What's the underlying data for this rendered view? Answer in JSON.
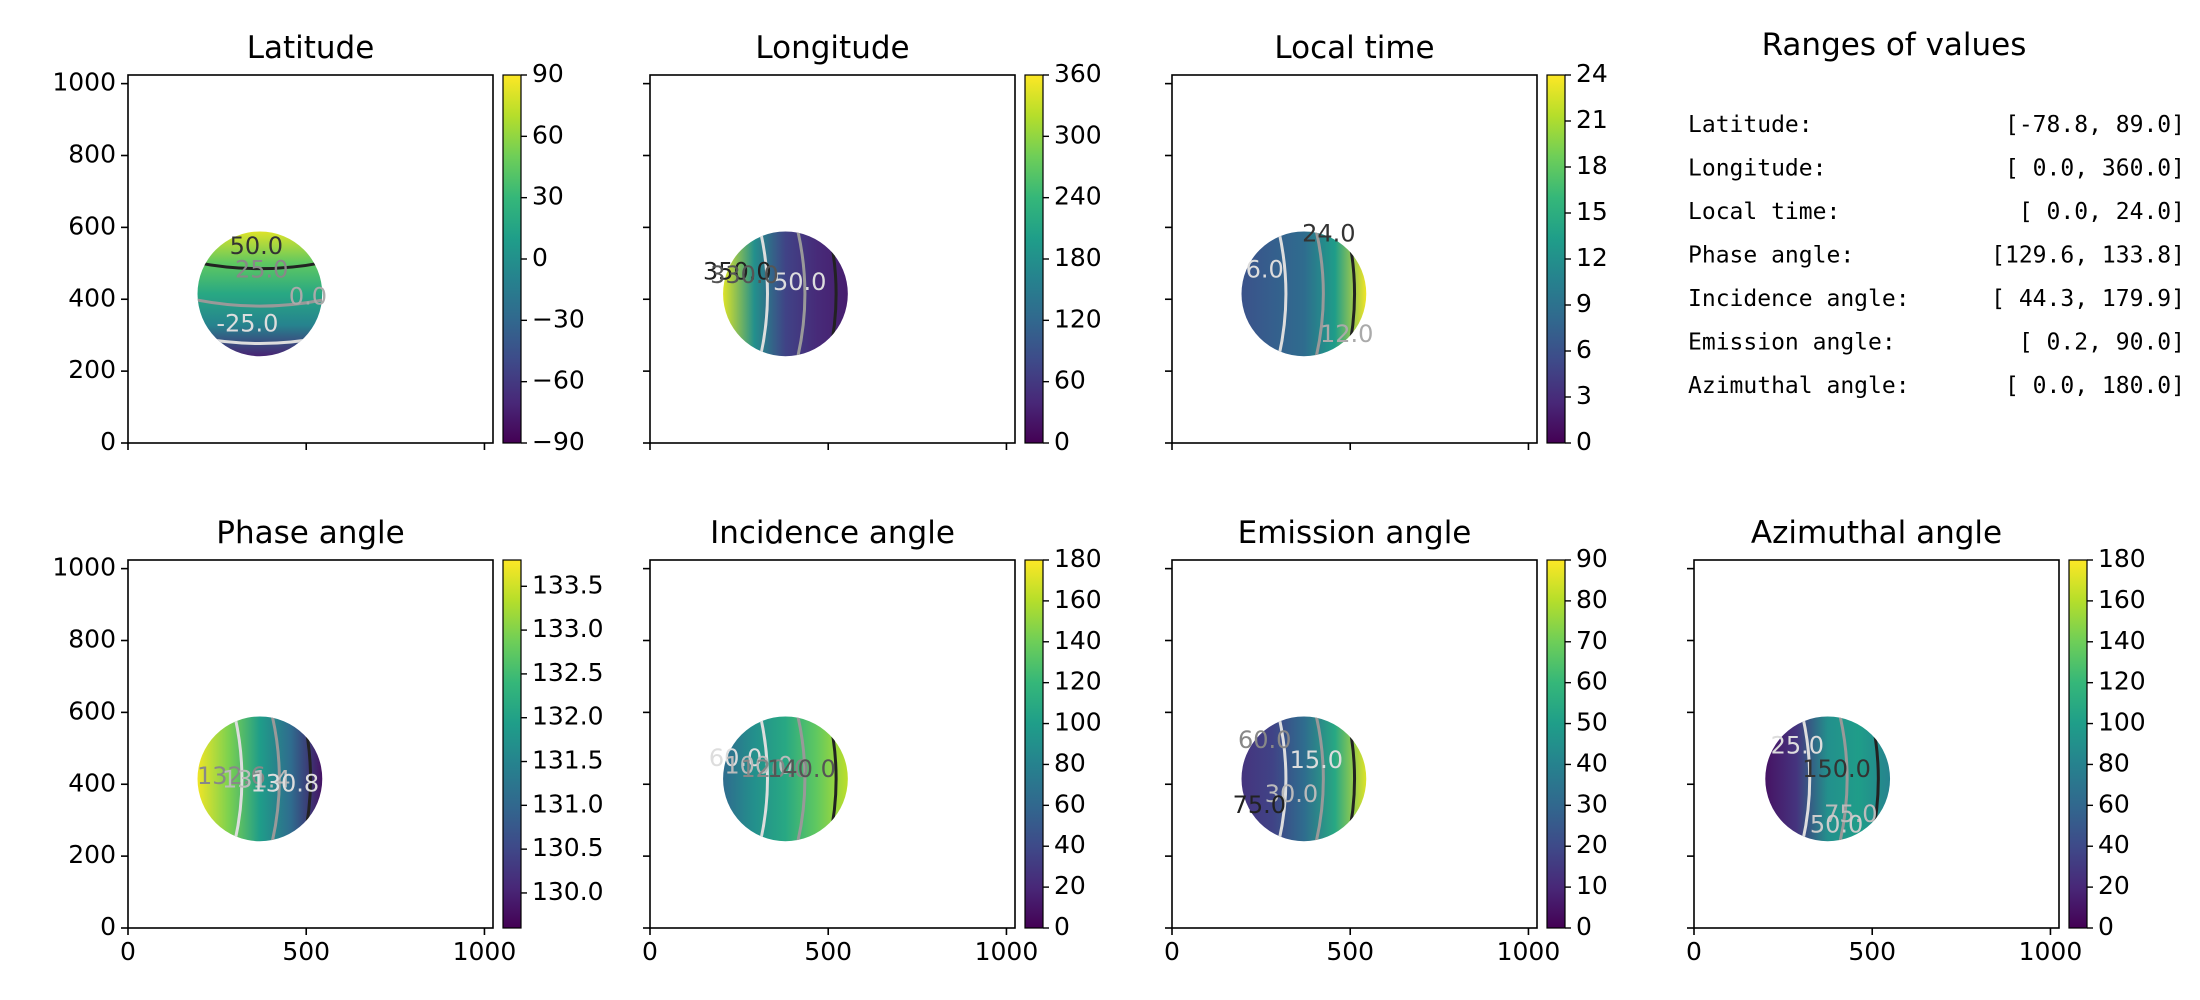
{
  "chart_data": [
    {
      "type": "heatmap",
      "title": "Latitude",
      "xticks": [],
      "yticks": [
        "0",
        "200",
        "400",
        "600",
        "800",
        "1000"
      ],
      "xlim": [
        0,
        1024
      ],
      "ylim": [
        0,
        1024
      ],
      "colorbar": {
        "min": -90,
        "max": 90,
        "ticks": [
          "90",
          "60",
          "30",
          "0",
          "−30",
          "−60",
          "−90"
        ],
        "tick_values": [
          90,
          60,
          30,
          0,
          -30,
          -60,
          -90
        ]
      },
      "disk": {
        "center": [
          370,
          415
        ],
        "radius": 175
      },
      "contour_labels": [
        {
          "text": "50.0",
          "x": 360,
          "y": 545,
          "color": "#333333"
        },
        {
          "text": "25.0",
          "x": 375,
          "y": 480,
          "color": "#888888"
        },
        {
          "text": "0.0",
          "x": 505,
          "y": 405,
          "color": "#aaaaaa"
        },
        {
          "text": "-25.0",
          "x": 335,
          "y": 330,
          "color": "#dddddd"
        }
      ]
    },
    {
      "type": "heatmap",
      "title": "Longitude",
      "xticks": [],
      "yticks": [],
      "xlim": [
        0,
        1024
      ],
      "ylim": [
        0,
        1024
      ],
      "colorbar": {
        "min": 0,
        "max": 360,
        "ticks": [
          "360",
          "300",
          "240",
          "180",
          "120",
          "60",
          "0"
        ],
        "tick_values": [
          360,
          300,
          240,
          180,
          120,
          60,
          0
        ]
      },
      "disk": {
        "center": [
          380,
          415
        ],
        "radius": 175
      },
      "contour_labels": [
        {
          "text": "50.0",
          "x": 420,
          "y": 445,
          "color": "#dddddd"
        },
        {
          "text": "350.0",
          "x": 245,
          "y": 475,
          "color": "#222222"
        },
        {
          "text": "330.0",
          "x": 265,
          "y": 465,
          "color": "#555555"
        }
      ]
    },
    {
      "type": "heatmap",
      "title": "Local time",
      "xticks": [],
      "yticks": [],
      "xlim": [
        0,
        1024
      ],
      "ylim": [
        0,
        1024
      ],
      "colorbar": {
        "min": 0,
        "max": 24,
        "ticks": [
          "24",
          "21",
          "18",
          "15",
          "12",
          "9",
          "6",
          "3",
          "0"
        ],
        "tick_values": [
          24,
          21,
          18,
          15,
          12,
          9,
          6,
          3,
          0
        ]
      },
      "disk": {
        "center": [
          370,
          415
        ],
        "radius": 175
      },
      "contour_labels": [
        {
          "text": "6.0",
          "x": 260,
          "y": 480,
          "color": "#dddddd"
        },
        {
          "text": "24.0",
          "x": 440,
          "y": 580,
          "color": "#333333"
        },
        {
          "text": "12.0",
          "x": 490,
          "y": 300,
          "color": "#aaaaaa"
        }
      ]
    },
    {
      "type": "text",
      "title": "Ranges of values",
      "rows": [
        {
          "label": "Latitude:",
          "range": "[-78.8,  89.0]"
        },
        {
          "label": "Longitude:",
          "range": "[  0.0, 360.0]"
        },
        {
          "label": "Local time:",
          "range": "[  0.0,  24.0]"
        },
        {
          "label": "Phase angle:",
          "range": "[129.6, 133.8]"
        },
        {
          "label": "Incidence angle:",
          "range": "[ 44.3, 179.9]"
        },
        {
          "label": "Emission angle:",
          "range": "[  0.2,  90.0]"
        },
        {
          "label": "Azimuthal angle:",
          "range": "[  0.0, 180.0]"
        }
      ]
    },
    {
      "type": "heatmap",
      "title": "Phase angle",
      "xticks": [
        "0",
        "500",
        "1000"
      ],
      "yticks": [
        "0",
        "200",
        "400",
        "600",
        "800",
        "1000"
      ],
      "xlim": [
        0,
        1024
      ],
      "ylim": [
        0,
        1024
      ],
      "colorbar": {
        "min": 129.6,
        "max": 133.8,
        "ticks": [
          "133.5",
          "133.0",
          "132.5",
          "132.0",
          "131.5",
          "131.0",
          "130.5",
          "130.0"
        ],
        "tick_values": [
          133.5,
          133.0,
          132.5,
          132.0,
          131.5,
          131.0,
          130.5,
          130.0
        ]
      },
      "disk": {
        "center": [
          370,
          415
        ],
        "radius": 175
      },
      "contour_labels": [
        {
          "text": "132.6",
          "x": 290,
          "y": 420,
          "color": "#888888"
        },
        {
          "text": "131.4",
          "x": 360,
          "y": 410,
          "color": "#bbbbbb"
        },
        {
          "text": "130.8",
          "x": 440,
          "y": 400,
          "color": "#dddddd"
        }
      ]
    },
    {
      "type": "heatmap",
      "title": "Incidence angle",
      "xticks": [
        "0",
        "500",
        "1000"
      ],
      "yticks": [],
      "xlim": [
        0,
        1024
      ],
      "ylim": [
        0,
        1024
      ],
      "colorbar": {
        "min": 0,
        "max": 180,
        "ticks": [
          "180",
          "160",
          "140",
          "120",
          "100",
          "80",
          "60",
          "40",
          "20",
          "0"
        ],
        "tick_values": [
          180,
          160,
          140,
          120,
          100,
          80,
          60,
          40,
          20,
          0
        ]
      },
      "disk": {
        "center": [
          380,
          415
        ],
        "radius": 175
      },
      "contour_labels": [
        {
          "text": "60.0",
          "x": 240,
          "y": 470,
          "color": "#dddddd"
        },
        {
          "text": "100.0",
          "x": 305,
          "y": 450,
          "color": "#bbbbbb"
        },
        {
          "text": "120.0",
          "x": 350,
          "y": 440,
          "color": "#888888"
        },
        {
          "text": "140.0",
          "x": 425,
          "y": 440,
          "color": "#555555"
        }
      ]
    },
    {
      "type": "heatmap",
      "title": "Emission angle",
      "xticks": [
        "0",
        "500",
        "1000"
      ],
      "yticks": [],
      "xlim": [
        0,
        1024
      ],
      "ylim": [
        0,
        1024
      ],
      "colorbar": {
        "min": 0,
        "max": 90,
        "ticks": [
          "90",
          "80",
          "70",
          "60",
          "50",
          "40",
          "30",
          "20",
          "10",
          "0"
        ],
        "tick_values": [
          90,
          80,
          70,
          60,
          50,
          40,
          30,
          20,
          10,
          0
        ]
      },
      "disk": {
        "center": [
          370,
          415
        ],
        "radius": 175
      },
      "contour_labels": [
        {
          "text": "15.0",
          "x": 405,
          "y": 465,
          "color": "#dddddd"
        },
        {
          "text": "30.0",
          "x": 335,
          "y": 370,
          "color": "#bbbbbb"
        },
        {
          "text": "60.0",
          "x": 260,
          "y": 520,
          "color": "#888888"
        },
        {
          "text": "75.0",
          "x": 245,
          "y": 340,
          "color": "#222222"
        }
      ]
    },
    {
      "type": "heatmap",
      "title": "Azimuthal angle",
      "xticks": [
        "0",
        "500",
        "1000"
      ],
      "yticks": [],
      "xlim": [
        0,
        1024
      ],
      "ylim": [
        0,
        1024
      ],
      "colorbar": {
        "min": 0,
        "max": 180,
        "ticks": [
          "180",
          "160",
          "140",
          "120",
          "100",
          "80",
          "60",
          "40",
          "20",
          "0"
        ],
        "tick_values": [
          180,
          160,
          140,
          120,
          100,
          80,
          60,
          40,
          20,
          0
        ]
      },
      "disk": {
        "center": [
          375,
          415
        ],
        "radius": 175
      },
      "contour_labels": [
        {
          "text": "25.0",
          "x": 290,
          "y": 505,
          "color": "#dddddd"
        },
        {
          "text": "75.0",
          "x": 440,
          "y": 315,
          "color": "#bbbbbb"
        },
        {
          "text": "50.0",
          "x": 400,
          "y": 285,
          "color": "#cccccc"
        },
        {
          "text": "150.0",
          "x": 400,
          "y": 440,
          "color": "#333333"
        }
      ]
    }
  ]
}
